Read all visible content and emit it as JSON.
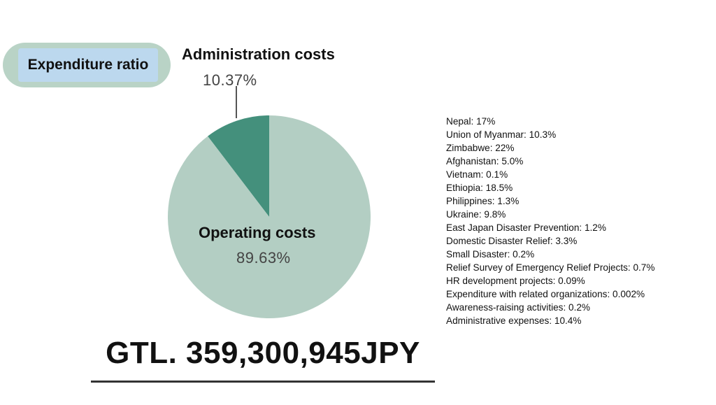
{
  "header": {
    "badge_label": "Expenditure ratio"
  },
  "chart_data": {
    "type": "pie",
    "slices": [
      {
        "label": "Administration costs",
        "value": 10.37,
        "display": "10.37%",
        "color": "#44907c"
      },
      {
        "label": "Operating costs",
        "value": 89.63,
        "display": "89.63%",
        "color": "#b3cec3"
      }
    ]
  },
  "breakdown": [
    "Nepal: 17%",
    "Union of Myanmar: 10.3%",
    "Zimbabwe: 22%",
    "Afghanistan: 5.0%",
    "Vietnam: 0.1%",
    "Ethiopia: 18.5%",
    "Philippines: 1.3%",
    "Ukraine: 9.8%",
    "East Japan Disaster Prevention: 1.2%",
    "Domestic Disaster Relief: 3.3%",
    "Small Disaster: 0.2%",
    "Relief Survey of Emergency Relief Projects: 0.7%",
    "HR development projects: 0.09%",
    "Expenditure with related organizations: 0.002%",
    "Awareness-raising activities: 0.2%",
    "Administrative expenses: 10.4%"
  ],
  "footer": {
    "total": "GTL. 359,300,945JPY"
  }
}
